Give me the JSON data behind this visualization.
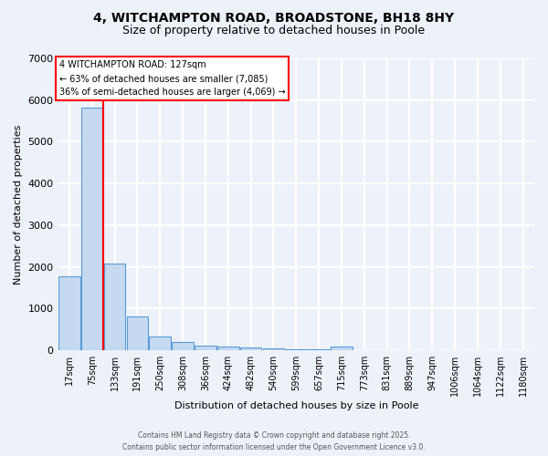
{
  "title_line1": "4, WITCHAMPTON ROAD, BROADSTONE, BH18 8HY",
  "title_line2": "Size of property relative to detached houses in Poole",
  "xlabel": "Distribution of detached houses by size in Poole",
  "ylabel": "Number of detached properties",
  "bar_labels": [
    "17sqm",
    "75sqm",
    "133sqm",
    "191sqm",
    "250sqm",
    "308sqm",
    "366sqm",
    "424sqm",
    "482sqm",
    "540sqm",
    "599sqm",
    "657sqm",
    "715sqm",
    "773sqm",
    "831sqm",
    "889sqm",
    "947sqm",
    "1006sqm",
    "1064sqm",
    "1122sqm",
    "1180sqm"
  ],
  "bar_values": [
    1780,
    5820,
    2080,
    820,
    330,
    200,
    120,
    90,
    70,
    45,
    30,
    20,
    80,
    5,
    2,
    2,
    1,
    1,
    1,
    1,
    1
  ],
  "bar_color": "#c5d9f1",
  "bar_edge_color": "#5b9bd5",
  "vline_position": 1.48,
  "vline_color": "red",
  "annotation_title": "4 WITCHAMPTON ROAD: 127sqm",
  "annotation_line2": "← 63% of detached houses are smaller (7,085)",
  "annotation_line3": "36% of semi-detached houses are larger (4,069) →",
  "ylim": [
    0,
    7000
  ],
  "yticks": [
    0,
    1000,
    2000,
    3000,
    4000,
    5000,
    6000,
    7000
  ],
  "footer_line1": "Contains HM Land Registry data © Crown copyright and database right 2025.",
  "footer_line2": "Contains public sector information licensed under the Open Government Licence v3.0.",
  "background_color": "#edf2fa",
  "grid_color": "white"
}
